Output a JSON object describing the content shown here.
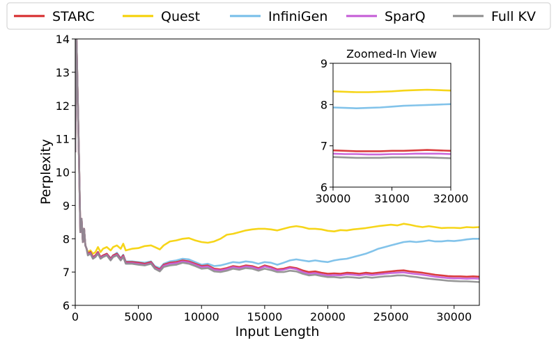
{
  "chart_data": {
    "type": "line",
    "xlabel": "Input Length",
    "ylabel": "Perplexity",
    "xlim": [
      0,
      32000
    ],
    "ylim": [
      6,
      14
    ],
    "xticks": [
      0,
      5000,
      10000,
      15000,
      20000,
      25000,
      30000
    ],
    "xtick_labels": [
      "0",
      "5000",
      "10000",
      "15000",
      "20000",
      "25000",
      "30000"
    ],
    "yticks": [
      6,
      7,
      8,
      9,
      10,
      11,
      12,
      13,
      14
    ],
    "ytick_labels": [
      "6",
      "7",
      "8",
      "9",
      "10",
      "11",
      "12",
      "13",
      "14"
    ],
    "legend_position": "top",
    "series": [
      {
        "name": "STARC",
        "color": "#d62728",
        "x": [
          0,
          100,
          200,
          300,
          400,
          500,
          600,
          700,
          800,
          900,
          1000,
          1200,
          1400,
          1600,
          1800,
          2000,
          2200,
          2500,
          2800,
          3000,
          3300,
          3600,
          3800,
          4000,
          4500,
          5000,
          5500,
          6000,
          6300,
          6700,
          7000,
          7500,
          8000,
          8500,
          9000,
          9500,
          10000,
          10500,
          11000,
          11500,
          12000,
          12500,
          13000,
          13500,
          14000,
          14500,
          15000,
          15500,
          16000,
          16500,
          17000,
          17500,
          18000,
          18500,
          19000,
          19500,
          20000,
          20500,
          21000,
          21500,
          22000,
          22500,
          23000,
          23500,
          24000,
          24500,
          25000,
          25500,
          26000,
          26500,
          27000,
          27500,
          28000,
          28500,
          29000,
          29500,
          30000,
          30500,
          31000,
          31500,
          32000
        ],
        "values": [
          10.6,
          14.0,
          12.2,
          10.4,
          8.2,
          8.6,
          7.9,
          8.3,
          7.8,
          7.7,
          7.55,
          7.6,
          7.45,
          7.5,
          7.6,
          7.45,
          7.5,
          7.55,
          7.4,
          7.5,
          7.55,
          7.4,
          7.5,
          7.3,
          7.3,
          7.28,
          7.25,
          7.3,
          7.15,
          7.08,
          7.22,
          7.28,
          7.3,
          7.35,
          7.32,
          7.25,
          7.18,
          7.2,
          7.1,
          7.08,
          7.12,
          7.18,
          7.15,
          7.2,
          7.18,
          7.12,
          7.2,
          7.15,
          7.08,
          7.1,
          7.15,
          7.12,
          7.05,
          7.0,
          7.02,
          6.98,
          6.95,
          6.96,
          6.95,
          6.98,
          6.97,
          6.95,
          6.98,
          6.96,
          6.98,
          7.0,
          7.02,
          7.04,
          7.05,
          7.02,
          7.0,
          6.98,
          6.95,
          6.92,
          6.9,
          6.88,
          6.87,
          6.87,
          6.86,
          6.87,
          6.86
        ]
      },
      {
        "name": "Quest",
        "color": "#f5d000",
        "x": [
          0,
          100,
          200,
          300,
          400,
          500,
          600,
          700,
          800,
          900,
          1000,
          1200,
          1400,
          1600,
          1800,
          2000,
          2200,
          2500,
          2800,
          3000,
          3300,
          3600,
          3800,
          4000,
          4500,
          5000,
          5500,
          6000,
          6300,
          6700,
          7000,
          7500,
          8000,
          8500,
          9000,
          9500,
          10000,
          10500,
          11000,
          11500,
          12000,
          12500,
          13000,
          13500,
          14000,
          14500,
          15000,
          15500,
          16000,
          16500,
          17000,
          17500,
          18000,
          18500,
          19000,
          19500,
          20000,
          20500,
          21000,
          21500,
          22000,
          22500,
          23000,
          23500,
          24000,
          24500,
          25000,
          25500,
          26000,
          26500,
          27000,
          27500,
          28000,
          28500,
          29000,
          29500,
          30000,
          30500,
          31000,
          31500,
          32000
        ],
        "values": [
          10.6,
          14.0,
          12.2,
          10.4,
          8.2,
          8.6,
          7.9,
          8.3,
          7.8,
          7.7,
          7.6,
          7.65,
          7.55,
          7.6,
          7.75,
          7.6,
          7.7,
          7.75,
          7.65,
          7.75,
          7.8,
          7.7,
          7.85,
          7.65,
          7.7,
          7.72,
          7.78,
          7.8,
          7.75,
          7.68,
          7.8,
          7.92,
          7.95,
          8.0,
          8.02,
          7.95,
          7.9,
          7.88,
          7.92,
          8.0,
          8.12,
          8.15,
          8.2,
          8.25,
          8.28,
          8.3,
          8.3,
          8.28,
          8.25,
          8.3,
          8.35,
          8.38,
          8.35,
          8.3,
          8.3,
          8.28,
          8.24,
          8.22,
          8.26,
          8.25,
          8.28,
          8.3,
          8.32,
          8.35,
          8.38,
          8.4,
          8.42,
          8.4,
          8.45,
          8.42,
          8.38,
          8.35,
          8.38,
          8.35,
          8.32,
          8.33,
          8.33,
          8.32,
          8.35,
          8.34,
          8.35
        ]
      },
      {
        "name": "InfiniGen",
        "color": "#74bde8",
        "x": [
          0,
          100,
          200,
          300,
          400,
          500,
          600,
          700,
          800,
          900,
          1000,
          1200,
          1400,
          1600,
          1800,
          2000,
          2200,
          2500,
          2800,
          3000,
          3300,
          3600,
          3800,
          4000,
          4500,
          5000,
          5500,
          6000,
          6300,
          6700,
          7000,
          7500,
          8000,
          8500,
          9000,
          9500,
          10000,
          10500,
          11000,
          11500,
          12000,
          12500,
          13000,
          13500,
          14000,
          14500,
          15000,
          15500,
          16000,
          16500,
          17000,
          17500,
          18000,
          18500,
          19000,
          19500,
          20000,
          20500,
          21000,
          21500,
          22000,
          22500,
          23000,
          23500,
          24000,
          24500,
          25000,
          25500,
          26000,
          26500,
          27000,
          27500,
          28000,
          28500,
          29000,
          29500,
          30000,
          30500,
          31000,
          31500,
          32000
        ],
        "values": [
          10.6,
          14.0,
          12.2,
          10.4,
          8.2,
          8.6,
          7.9,
          8.3,
          7.8,
          7.7,
          7.55,
          7.6,
          7.45,
          7.5,
          7.6,
          7.45,
          7.5,
          7.55,
          7.42,
          7.5,
          7.58,
          7.42,
          7.52,
          7.32,
          7.32,
          7.3,
          7.28,
          7.32,
          7.18,
          7.12,
          7.25,
          7.32,
          7.35,
          7.4,
          7.38,
          7.3,
          7.22,
          7.25,
          7.18,
          7.2,
          7.25,
          7.3,
          7.28,
          7.32,
          7.3,
          7.25,
          7.3,
          7.28,
          7.22,
          7.28,
          7.35,
          7.38,
          7.35,
          7.32,
          7.35,
          7.32,
          7.3,
          7.35,
          7.38,
          7.4,
          7.45,
          7.5,
          7.55,
          7.62,
          7.7,
          7.75,
          7.8,
          7.85,
          7.9,
          7.92,
          7.9,
          7.92,
          7.95,
          7.92,
          7.92,
          7.94,
          7.93,
          7.95,
          7.98,
          8.0,
          8.0
        ]
      },
      {
        "name": "SparQ",
        "color": "#c45ad6",
        "x": [
          0,
          100,
          200,
          300,
          400,
          500,
          600,
          700,
          800,
          900,
          1000,
          1200,
          1400,
          1600,
          1800,
          2000,
          2200,
          2500,
          2800,
          3000,
          3300,
          3600,
          3800,
          4000,
          4500,
          5000,
          5500,
          6000,
          6300,
          6700,
          7000,
          7500,
          8000,
          8500,
          9000,
          9500,
          10000,
          10500,
          11000,
          11500,
          12000,
          12500,
          13000,
          13500,
          14000,
          14500,
          15000,
          15500,
          16000,
          16500,
          17000,
          17500,
          18000,
          18500,
          19000,
          19500,
          20000,
          20500,
          21000,
          21500,
          22000,
          22500,
          23000,
          23500,
          24000,
          24500,
          25000,
          25500,
          26000,
          26500,
          27000,
          27500,
          28000,
          28500,
          29000,
          29500,
          30000,
          30500,
          31000,
          31500,
          32000
        ],
        "values": [
          10.6,
          14.0,
          12.2,
          10.4,
          8.2,
          8.6,
          7.9,
          8.3,
          7.8,
          7.7,
          7.52,
          7.57,
          7.42,
          7.47,
          7.57,
          7.42,
          7.47,
          7.52,
          7.37,
          7.47,
          7.52,
          7.37,
          7.47,
          7.27,
          7.27,
          7.25,
          7.22,
          7.27,
          7.12,
          7.05,
          7.19,
          7.25,
          7.27,
          7.32,
          7.29,
          7.22,
          7.15,
          7.17,
          7.07,
          7.05,
          7.09,
          7.15,
          7.12,
          7.17,
          7.15,
          7.09,
          7.17,
          7.12,
          7.05,
          7.07,
          7.12,
          7.09,
          7.0,
          6.95,
          6.97,
          6.93,
          6.9,
          6.91,
          6.9,
          6.93,
          6.92,
          6.9,
          6.93,
          6.91,
          6.93,
          6.95,
          6.97,
          6.98,
          6.99,
          6.96,
          6.94,
          6.92,
          6.89,
          6.86,
          6.84,
          6.82,
          6.81,
          6.81,
          6.8,
          6.81,
          6.8
        ]
      },
      {
        "name": "Full KV",
        "color": "#8c8c8c",
        "x": [
          0,
          100,
          200,
          300,
          400,
          500,
          600,
          700,
          800,
          900,
          1000,
          1200,
          1400,
          1600,
          1800,
          2000,
          2200,
          2500,
          2800,
          3000,
          3300,
          3600,
          3800,
          4000,
          4500,
          5000,
          5500,
          6000,
          6300,
          6700,
          7000,
          7500,
          8000,
          8500,
          9000,
          9500,
          10000,
          10500,
          11000,
          11500,
          12000,
          12500,
          13000,
          13500,
          14000,
          14500,
          15000,
          15500,
          16000,
          16500,
          17000,
          17500,
          18000,
          18500,
          19000,
          19500,
          20000,
          20500,
          21000,
          21500,
          22000,
          22500,
          23000,
          23500,
          24000,
          24500,
          25000,
          25500,
          26000,
          26500,
          27000,
          27500,
          28000,
          28500,
          29000,
          29500,
          30000,
          30500,
          31000,
          31500,
          32000
        ],
        "values": [
          10.6,
          14.0,
          12.2,
          10.4,
          8.2,
          8.6,
          7.9,
          8.3,
          7.8,
          7.7,
          7.5,
          7.55,
          7.4,
          7.45,
          7.55,
          7.4,
          7.45,
          7.5,
          7.35,
          7.45,
          7.5,
          7.35,
          7.45,
          7.25,
          7.25,
          7.22,
          7.2,
          7.25,
          7.1,
          7.02,
          7.15,
          7.2,
          7.22,
          7.28,
          7.25,
          7.18,
          7.1,
          7.12,
          7.02,
          7.0,
          7.04,
          7.1,
          7.07,
          7.12,
          7.1,
          7.04,
          7.1,
          7.06,
          7.0,
          7.0,
          7.04,
          7.02,
          6.95,
          6.9,
          6.92,
          6.88,
          6.85,
          6.85,
          6.83,
          6.85,
          6.84,
          6.82,
          6.85,
          6.83,
          6.85,
          6.87,
          6.88,
          6.9,
          6.9,
          6.87,
          6.85,
          6.82,
          6.8,
          6.78,
          6.76,
          6.74,
          6.73,
          6.72,
          6.72,
          6.71,
          6.7
        ]
      }
    ],
    "inset": {
      "title": "Zoomed-In View",
      "xlim": [
        30000,
        32000
      ],
      "ylim": [
        6,
        9
      ],
      "xticks": [
        30000,
        31000,
        32000
      ],
      "xtick_labels": [
        "30000",
        "31000",
        "32000"
      ],
      "yticks": [
        6,
        7,
        8,
        9
      ],
      "ytick_labels": [
        "6",
        "7",
        "8",
        "9"
      ],
      "x": [
        30000,
        30200,
        30400,
        30600,
        30800,
        31000,
        31200,
        31400,
        31600,
        31800,
        32000
      ],
      "series": [
        {
          "name": "STARC",
          "values": [
            6.89,
            6.88,
            6.87,
            6.87,
            6.87,
            6.88,
            6.88,
            6.89,
            6.9,
            6.89,
            6.88
          ]
        },
        {
          "name": "Quest",
          "values": [
            8.32,
            8.31,
            8.3,
            8.3,
            8.31,
            8.32,
            8.34,
            8.35,
            8.36,
            8.35,
            8.34
          ]
        },
        {
          "name": "InfiniGen",
          "values": [
            7.93,
            7.92,
            7.91,
            7.92,
            7.93,
            7.95,
            7.97,
            7.98,
            7.99,
            8.0,
            8.01
          ]
        },
        {
          "name": "SparQ",
          "values": [
            6.81,
            6.8,
            6.8,
            6.79,
            6.79,
            6.8,
            6.8,
            6.81,
            6.81,
            6.81,
            6.8
          ]
        },
        {
          "name": "Full KV",
          "values": [
            6.73,
            6.72,
            6.71,
            6.71,
            6.71,
            6.72,
            6.72,
            6.72,
            6.72,
            6.71,
            6.7
          ]
        }
      ]
    }
  }
}
